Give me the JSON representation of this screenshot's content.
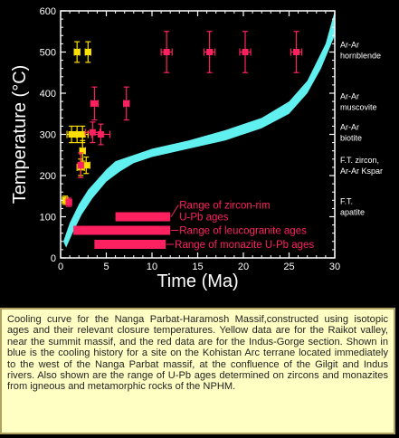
{
  "chart_data": {
    "type": "scatter",
    "xlabel": "Time (Ma)",
    "ylabel": "Temperature (°C)",
    "xlim": [
      0,
      30
    ],
    "ylim": [
      0,
      600
    ],
    "x_ticks": [
      0,
      5,
      10,
      15,
      20,
      25,
      30
    ],
    "y_ticks": [
      0,
      100,
      200,
      300,
      400,
      500,
      600
    ],
    "colors": {
      "yellow": "#ffe000",
      "red": "#ff2060",
      "band": "#60f0f0",
      "text": "#ffffff",
      "annotation": "#ff2060"
    },
    "series": [
      {
        "name": "Raikot valley",
        "color": "yellow",
        "points": [
          {
            "x": 1.8,
            "y": 500,
            "xerr": 0.3,
            "yerr": 25
          },
          {
            "x": 3.0,
            "y": 500,
            "xerr": 0.3,
            "yerr": 25
          },
          {
            "x": 1.2,
            "y": 300,
            "xerr": 0.5,
            "yerr": 20
          },
          {
            "x": 1.8,
            "y": 300,
            "xerr": 0.6,
            "yerr": 20
          },
          {
            "x": 2.4,
            "y": 300,
            "xerr": 0.6,
            "yerr": 20
          },
          {
            "x": 2.4,
            "y": 260,
            "xerr": 0.3,
            "yerr": 25
          },
          {
            "x": 2.8,
            "y": 225,
            "xerr": 0.4,
            "yerr": 20
          },
          {
            "x": 2.2,
            "y": 220,
            "xerr": 0.4,
            "yerr": 20
          },
          {
            "x": 0.5,
            "y": 140,
            "xerr": 0.3,
            "yerr": 10
          }
        ]
      },
      {
        "name": "Indus-Gorge section",
        "color": "red",
        "points": [
          {
            "x": 11.6,
            "y": 500,
            "xerr": 0.6,
            "yerr": 50
          },
          {
            "x": 16.3,
            "y": 500,
            "xerr": 0.6,
            "yerr": 50
          },
          {
            "x": 20.2,
            "y": 500,
            "xerr": 0.6,
            "yerr": 50
          },
          {
            "x": 25.8,
            "y": 500,
            "xerr": 0.6,
            "yerr": 50
          },
          {
            "x": 3.7,
            "y": 375,
            "xerr": 0.4,
            "yerr": 40
          },
          {
            "x": 7.2,
            "y": 375,
            "xerr": 0.3,
            "yerr": 40
          },
          {
            "x": 3.5,
            "y": 305,
            "xerr": 0.8,
            "yerr": 25
          },
          {
            "x": 4.4,
            "y": 300,
            "xerr": 1.0,
            "yerr": 25
          },
          {
            "x": 2.2,
            "y": 225,
            "xerr": 0.3,
            "yerr": 30
          },
          {
            "x": 0.9,
            "y": 135,
            "xerr": 0.3,
            "yerr": 10
          }
        ]
      }
    ],
    "cooling_band": {
      "name": "Kohistan Arc cooling history",
      "color": "band",
      "upper": [
        [
          0.3,
          40
        ],
        [
          1,
          85
        ],
        [
          2,
          130
        ],
        [
          3,
          165
        ],
        [
          4,
          190
        ],
        [
          5,
          215
        ],
        [
          6,
          235
        ],
        [
          8,
          250
        ],
        [
          10,
          265
        ],
        [
          14,
          285
        ],
        [
          18,
          310
        ],
        [
          22,
          340
        ],
        [
          25,
          380
        ],
        [
          27,
          430
        ],
        [
          29,
          520
        ],
        [
          30,
          600
        ]
      ],
      "lower": [
        [
          0.6,
          25
        ],
        [
          1.3,
          60
        ],
        [
          2.3,
          105
        ],
        [
          3.5,
          145
        ],
        [
          5,
          185
        ],
        [
          6.5,
          210
        ],
        [
          8,
          230
        ],
        [
          10,
          245
        ],
        [
          14,
          265
        ],
        [
          18,
          285
        ],
        [
          22,
          315
        ],
        [
          25,
          350
        ],
        [
          27,
          400
        ],
        [
          28.5,
          460
        ],
        [
          30,
          540
        ]
      ]
    },
    "ranges": [
      {
        "label": "Range of zircon-rim U-Pb ages",
        "label_lines": [
          "Range of zircon-rim",
          "U-Pb ages"
        ],
        "x0": 6,
        "x1": 12,
        "y": 100
      },
      {
        "label": "Range of leucogranite ages",
        "label_lines": [
          "Range of leucogranite ages"
        ],
        "x0": 1.4,
        "x1": 12,
        "y": 67
      },
      {
        "label": "Range of monazite U-Pb ages",
        "label_lines": [
          "Range of monazite U-Pb ages"
        ],
        "x0": 3.7,
        "x1": 11.5,
        "y": 33
      }
    ],
    "right_labels": [
      {
        "lines": [
          "Ar-Ar",
          "hornblende"
        ],
        "y": 500
      },
      {
        "lines": [
          "Ar-Ar",
          "muscovite"
        ],
        "y": 375
      },
      {
        "lines": [
          "Ar-Ar",
          "biotite"
        ],
        "y": 300
      },
      {
        "lines": [
          "F.T. zircon,",
          "Ar-Ar Kspar"
        ],
        "y": 220
      },
      {
        "lines": [
          "F.T.",
          "apatite"
        ],
        "y": 120
      }
    ]
  },
  "caption": "Cooling curve for the Nanga Parbat-Haramosh Massif,constructed using isotopic ages and their relevant closure temperatures. Yellow data are for the Raikot valley, near the summit massif, and the red data are for the Indus-Gorge section. Shown in blue is the cooling history for a site on the Kohistan Arc terrane located immediately to the west of the Nanga Parbat massif, at the confluence of the Gilgit and Indus rivers. Also shown are the range of U-Pb ages determined on zircons and monazites from igneous and metamorphic rocks of the NPHM."
}
